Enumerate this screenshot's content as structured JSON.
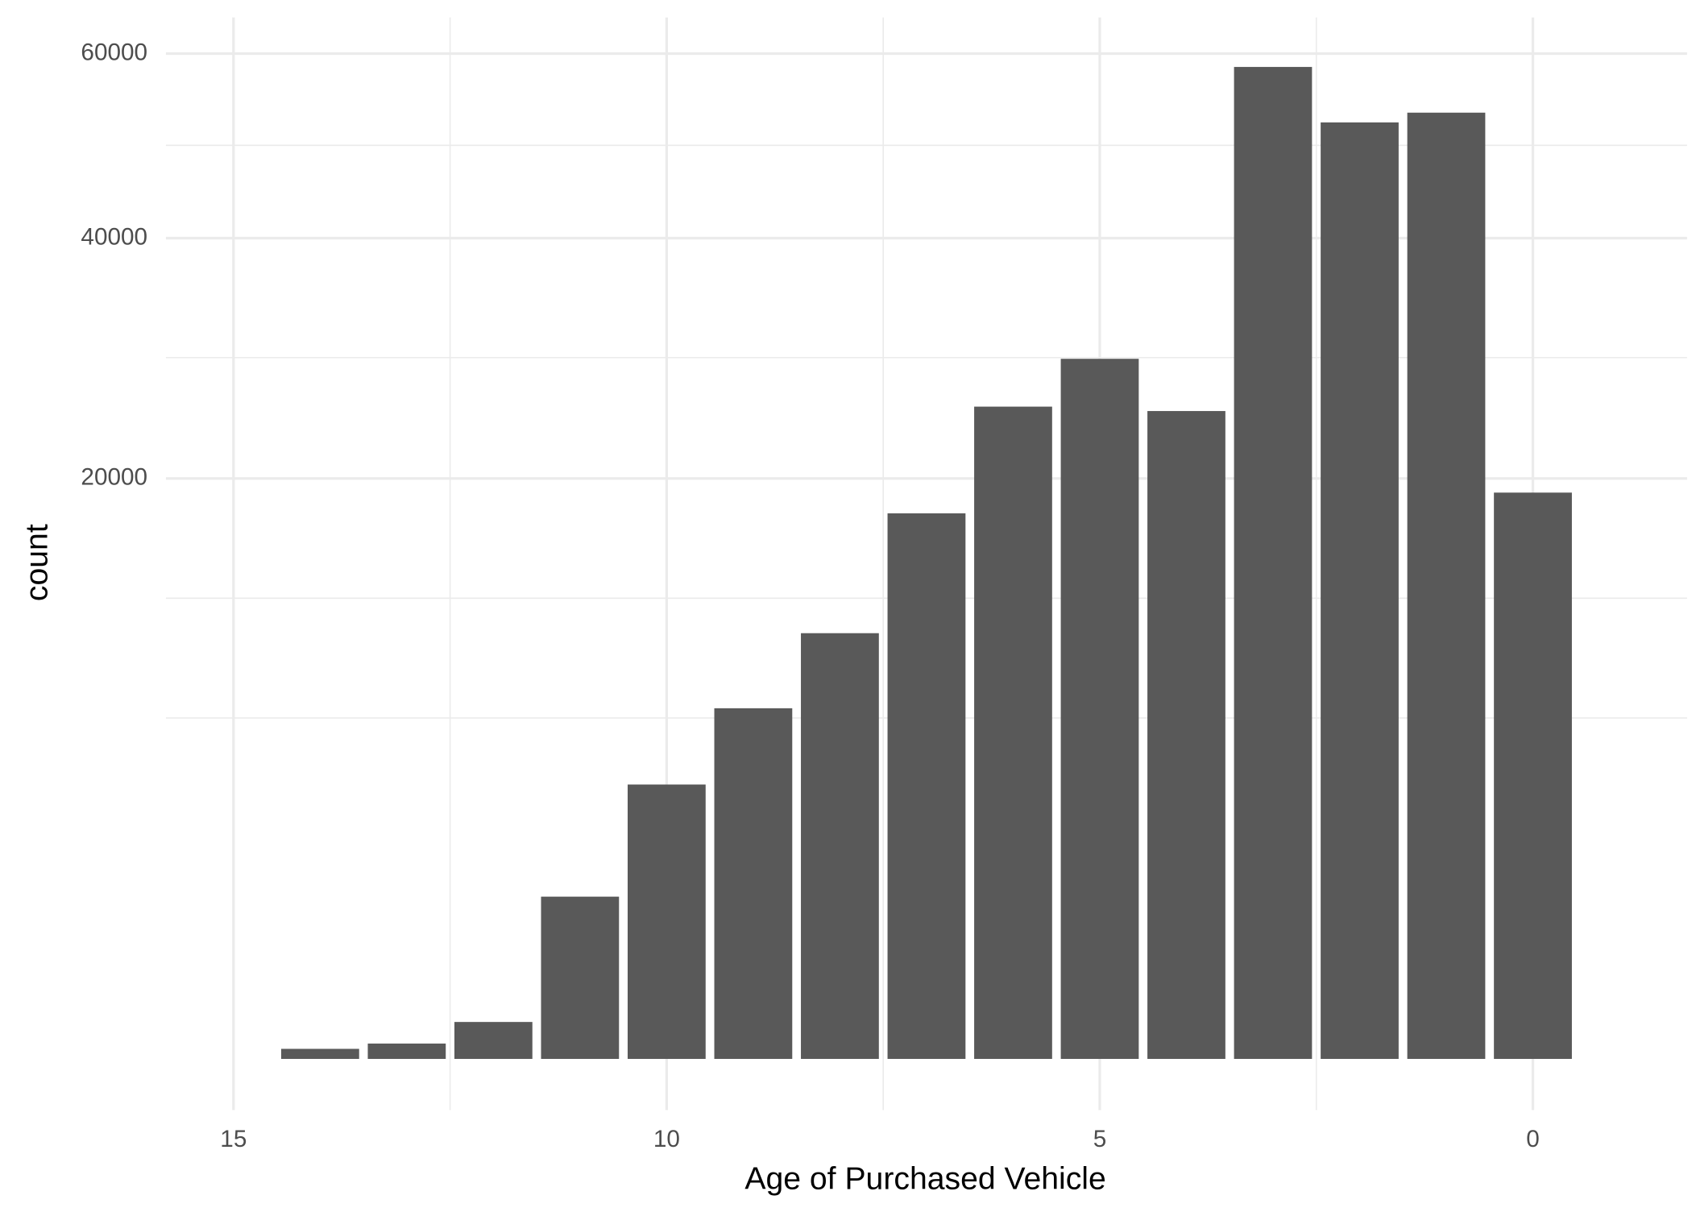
{
  "chart_data": {
    "type": "bar",
    "x_label": "Age of Purchased Vehicle",
    "y_label": "count",
    "x": [
      14,
      13,
      12,
      11,
      10,
      9,
      8,
      7,
      6,
      5,
      4,
      3,
      2,
      1,
      0
    ],
    "values": [
      6,
      14,
      81,
      1563,
      4470,
      7300,
      10760,
      17670,
      25260,
      29100,
      24920,
      58420,
      52070,
      53160,
      19040
    ],
    "color": "#595959",
    "bar_width": 0.9,
    "xlim": [
      15.78,
      -1.78
    ],
    "xticks": [
      15,
      10,
      5,
      0
    ],
    "x_minor_ticks": [
      12.5,
      7.5,
      2.5
    ],
    "x_reversed": true,
    "ylim": [
      0,
      64400
    ],
    "yticks": [
      20000,
      40000,
      60000
    ],
    "y_minor_ticks": [
      6900,
      12600,
      29200,
      49550
    ],
    "y_scale": "sqrt",
    "grid": true
  }
}
